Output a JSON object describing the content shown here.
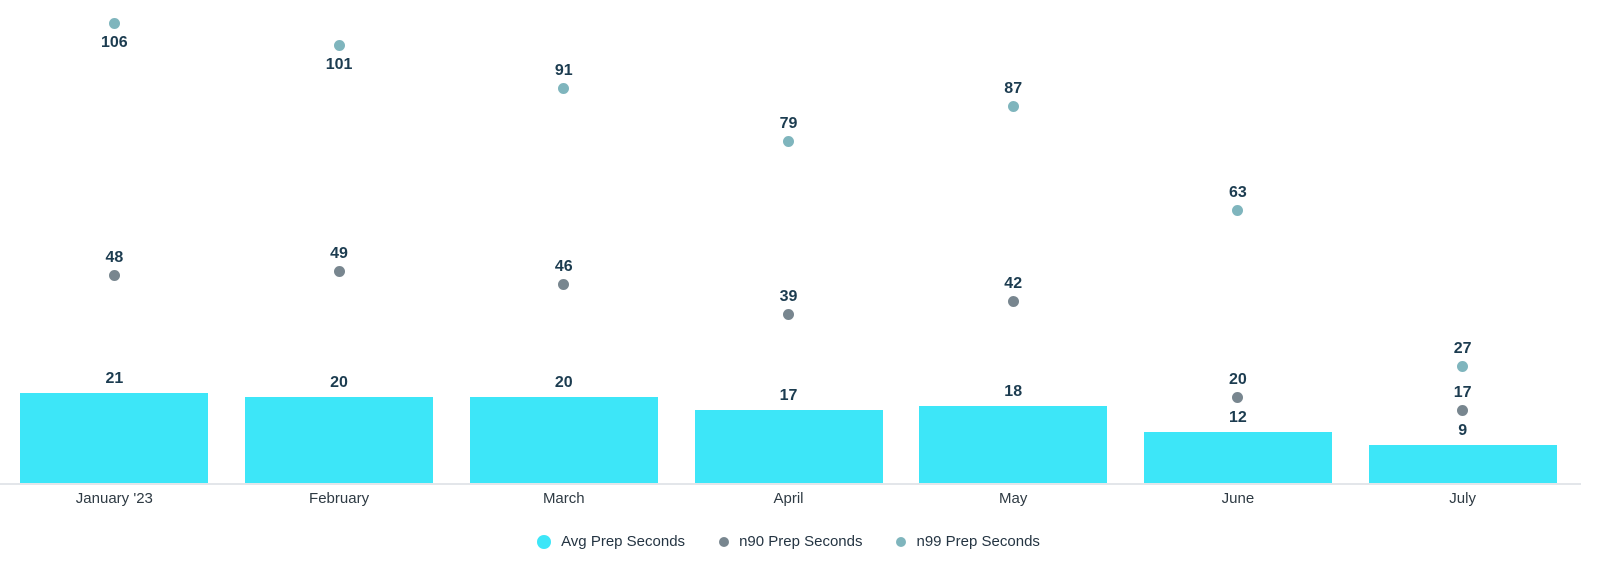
{
  "chart_data": {
    "type": "bar",
    "title": "",
    "categories": [
      "January '23",
      "February",
      "March",
      "April",
      "May",
      "June",
      "July"
    ],
    "series": [
      {
        "name": "Avg Prep Seconds",
        "type": "bar",
        "color": "#3DE6F8",
        "values": [
          21,
          20,
          20,
          17,
          18,
          12,
          9
        ]
      },
      {
        "name": "n90 Prep Seconds",
        "type": "scatter",
        "color": "#78868F",
        "values": [
          48,
          49,
          46,
          39,
          42,
          20,
          17
        ]
      },
      {
        "name": "n99 Prep Seconds",
        "type": "scatter",
        "color": "#7FB5BD",
        "values": [
          106,
          101,
          91,
          79,
          87,
          63,
          27
        ],
        "value_label_below": [
          true,
          true,
          false,
          false,
          false,
          false,
          false
        ]
      }
    ],
    "ylim": [
      0,
      111.5
    ],
    "grid": false,
    "y_axis_visible": false,
    "value_labels_shown": true,
    "legend_position": "bottom",
    "colors": {
      "value_label": "#1C3C50",
      "axis_label": "#2E3A43",
      "legend_text": "#243442",
      "axis_line": "#E3E6EA",
      "background": "#FFFFFF"
    }
  }
}
